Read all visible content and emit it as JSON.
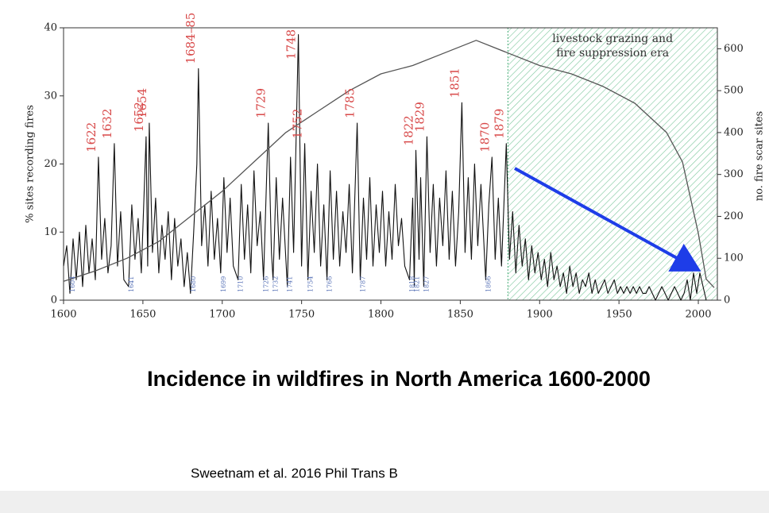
{
  "chart_data": {
    "type": "line",
    "title": "Incidence in wildfires in North America 1600-2000",
    "source": "Sweetnam et al. 2016 Phil Trans B",
    "y_label": "% sites recording fires",
    "y2_label": "no. fire scar sites",
    "xlim": [
      1600,
      2012
    ],
    "xticks": [
      1600,
      1650,
      1700,
      1750,
      1800,
      1850,
      1900,
      1950,
      2000
    ],
    "ylim": [
      0,
      40
    ],
    "yticks": [
      0,
      10,
      20,
      30,
      40
    ],
    "y2lim": [
      0,
      650
    ],
    "y2ticks": [
      0,
      100,
      200,
      300,
      400,
      500,
      600
    ],
    "shade_from": 1880,
    "shade_text": [
      "livestock grazing and",
      "fire suppression era"
    ],
    "shade_color": "#4caf7a",
    "series": [
      {
        "color": "#111111",
        "axis": "y",
        "x": [
          1600,
          1602,
          1604,
          1606,
          1608,
          1610,
          1612,
          1614,
          1616,
          1618,
          1620,
          1622,
          1624,
          1626,
          1628,
          1630,
          1632,
          1634,
          1636,
          1638,
          1641,
          1643,
          1645,
          1647,
          1649,
          1652,
          1653,
          1654,
          1656,
          1658,
          1660,
          1662,
          1664,
          1666,
          1668,
          1670,
          1672,
          1674,
          1676,
          1678,
          1680,
          1682,
          1684,
          1685,
          1687,
          1689,
          1691,
          1693,
          1695,
          1697,
          1699,
          1701,
          1703,
          1705,
          1707,
          1710,
          1712,
          1714,
          1716,
          1718,
          1720,
          1722,
          1724,
          1726,
          1729,
          1731,
          1732,
          1734,
          1736,
          1738,
          1741,
          1743,
          1745,
          1748,
          1750,
          1752,
          1754,
          1756,
          1758,
          1760,
          1762,
          1764,
          1766,
          1768,
          1770,
          1772,
          1774,
          1776,
          1778,
          1780,
          1782,
          1785,
          1787,
          1789,
          1791,
          1793,
          1795,
          1797,
          1799,
          1801,
          1803,
          1805,
          1807,
          1809,
          1811,
          1813,
          1815,
          1818,
          1820,
          1821,
          1822,
          1824,
          1825,
          1827,
          1829,
          1831,
          1833,
          1835,
          1837,
          1839,
          1841,
          1843,
          1845,
          1847,
          1849,
          1851,
          1853,
          1855,
          1857,
          1859,
          1861,
          1863,
          1866,
          1868,
          1870,
          1872,
          1874,
          1876,
          1879,
          1881,
          1883,
          1885,
          1887,
          1889,
          1891,
          1893,
          1895,
          1897,
          1899,
          1901,
          1903,
          1905,
          1907,
          1909,
          1911,
          1913,
          1915,
          1917,
          1919,
          1921,
          1923,
          1925,
          1927,
          1929,
          1931,
          1933,
          1935,
          1937,
          1939,
          1941,
          1943,
          1945,
          1947,
          1949,
          1951,
          1953,
          1955,
          1957,
          1959,
          1961,
          1963,
          1965,
          1967,
          1969,
          1971,
          1973,
          1975,
          1977,
          1979,
          1981,
          1983,
          1985,
          1987,
          1989,
          1991,
          1993,
          1995,
          1997,
          1999,
          2001,
          2003,
          2005
        ],
        "values": [
          5,
          8,
          1,
          9,
          3,
          10,
          2,
          11,
          4,
          9,
          3,
          21,
          6,
          12,
          4,
          8,
          23,
          5,
          13,
          3,
          2,
          14,
          6,
          12,
          4,
          24,
          5,
          26,
          7,
          15,
          4,
          11,
          6,
          13,
          3,
          12,
          5,
          9,
          2,
          7,
          1,
          10,
          20,
          34,
          8,
          14,
          5,
          16,
          6,
          12,
          4,
          18,
          7,
          15,
          5,
          3,
          17,
          6,
          14,
          4,
          19,
          8,
          13,
          3,
          26,
          7,
          3,
          18,
          6,
          15,
          2,
          21,
          7,
          39,
          5,
          23,
          3,
          16,
          7,
          20,
          5,
          14,
          3,
          19,
          6,
          16,
          5,
          13,
          7,
          17,
          4,
          26,
          3,
          15,
          6,
          18,
          5,
          14,
          7,
          16,
          5,
          13,
          6,
          17,
          8,
          12,
          5,
          3,
          15,
          2,
          22,
          6,
          18,
          2,
          24,
          7,
          17,
          5,
          15,
          8,
          19,
          6,
          16,
          5,
          13,
          29,
          7,
          18,
          6,
          20,
          8,
          17,
          3,
          14,
          21,
          6,
          15,
          5,
          23,
          6,
          13,
          4,
          11,
          5,
          9,
          3,
          8,
          4,
          7,
          3,
          6,
          2,
          7,
          3,
          5,
          2,
          4,
          1,
          5,
          2,
          4,
          1,
          3,
          2,
          4,
          1,
          3,
          1,
          2,
          3,
          1,
          2,
          3,
          1,
          2,
          1,
          2,
          1,
          2,
          1,
          2,
          1,
          1,
          2,
          1,
          0,
          1,
          2,
          1,
          0,
          1,
          2,
          1,
          0,
          1,
          3,
          0,
          4,
          1,
          4,
          2,
          0
        ]
      },
      {
        "color": "#555555",
        "axis": "y2",
        "x": [
          1600,
          1620,
          1640,
          1660,
          1680,
          1700,
          1720,
          1740,
          1760,
          1780,
          1800,
          1820,
          1840,
          1860,
          1880,
          1900,
          1920,
          1940,
          1960,
          1980,
          1990,
          2000,
          2005,
          2010
        ],
        "values": [
          45,
          70,
          100,
          140,
          200,
          260,
          330,
          400,
          450,
          500,
          540,
          560,
          590,
          620,
          590,
          560,
          540,
          510,
          470,
          400,
          330,
          160,
          50,
          30
        ]
      }
    ],
    "peak_labels": [
      {
        "x": 1622,
        "text": "1622"
      },
      {
        "x": 1632,
        "text": "1632"
      },
      {
        "x": 1652,
        "text": "1652"
      },
      {
        "x": 1654,
        "text": "1654"
      },
      {
        "x": 1684.5,
        "text": "1684–85"
      },
      {
        "x": 1729,
        "text": "1729"
      },
      {
        "x": 1748,
        "text": "1748"
      },
      {
        "x": 1752,
        "text": "1752"
      },
      {
        "x": 1785,
        "text": "1785"
      },
      {
        "x": 1822,
        "text": "1822"
      },
      {
        "x": 1829,
        "text": "1829"
      },
      {
        "x": 1851,
        "text": "1851"
      },
      {
        "x": 1870,
        "text": "1870"
      },
      {
        "x": 1879,
        "text": "1879"
      }
    ],
    "trough_labels": [
      {
        "x": 1604,
        "text": "1604"
      },
      {
        "x": 1641,
        "text": "1641"
      },
      {
        "x": 1680,
        "text": "1680"
      },
      {
        "x": 1699,
        "text": "1699"
      },
      {
        "x": 1710,
        "text": "1710"
      },
      {
        "x": 1726,
        "text": "1726"
      },
      {
        "x": 1732,
        "text": "1732"
      },
      {
        "x": 1741,
        "text": "1741"
      },
      {
        "x": 1754,
        "text": "1754"
      },
      {
        "x": 1766,
        "text": "1766"
      },
      {
        "x": 1787,
        "text": "1787"
      },
      {
        "x": 1818,
        "text": "1818"
      },
      {
        "x": 1821,
        "text": "1821"
      },
      {
        "x": 1827,
        "text": "1827"
      },
      {
        "x": 1866,
        "text": "1866"
      }
    ]
  }
}
